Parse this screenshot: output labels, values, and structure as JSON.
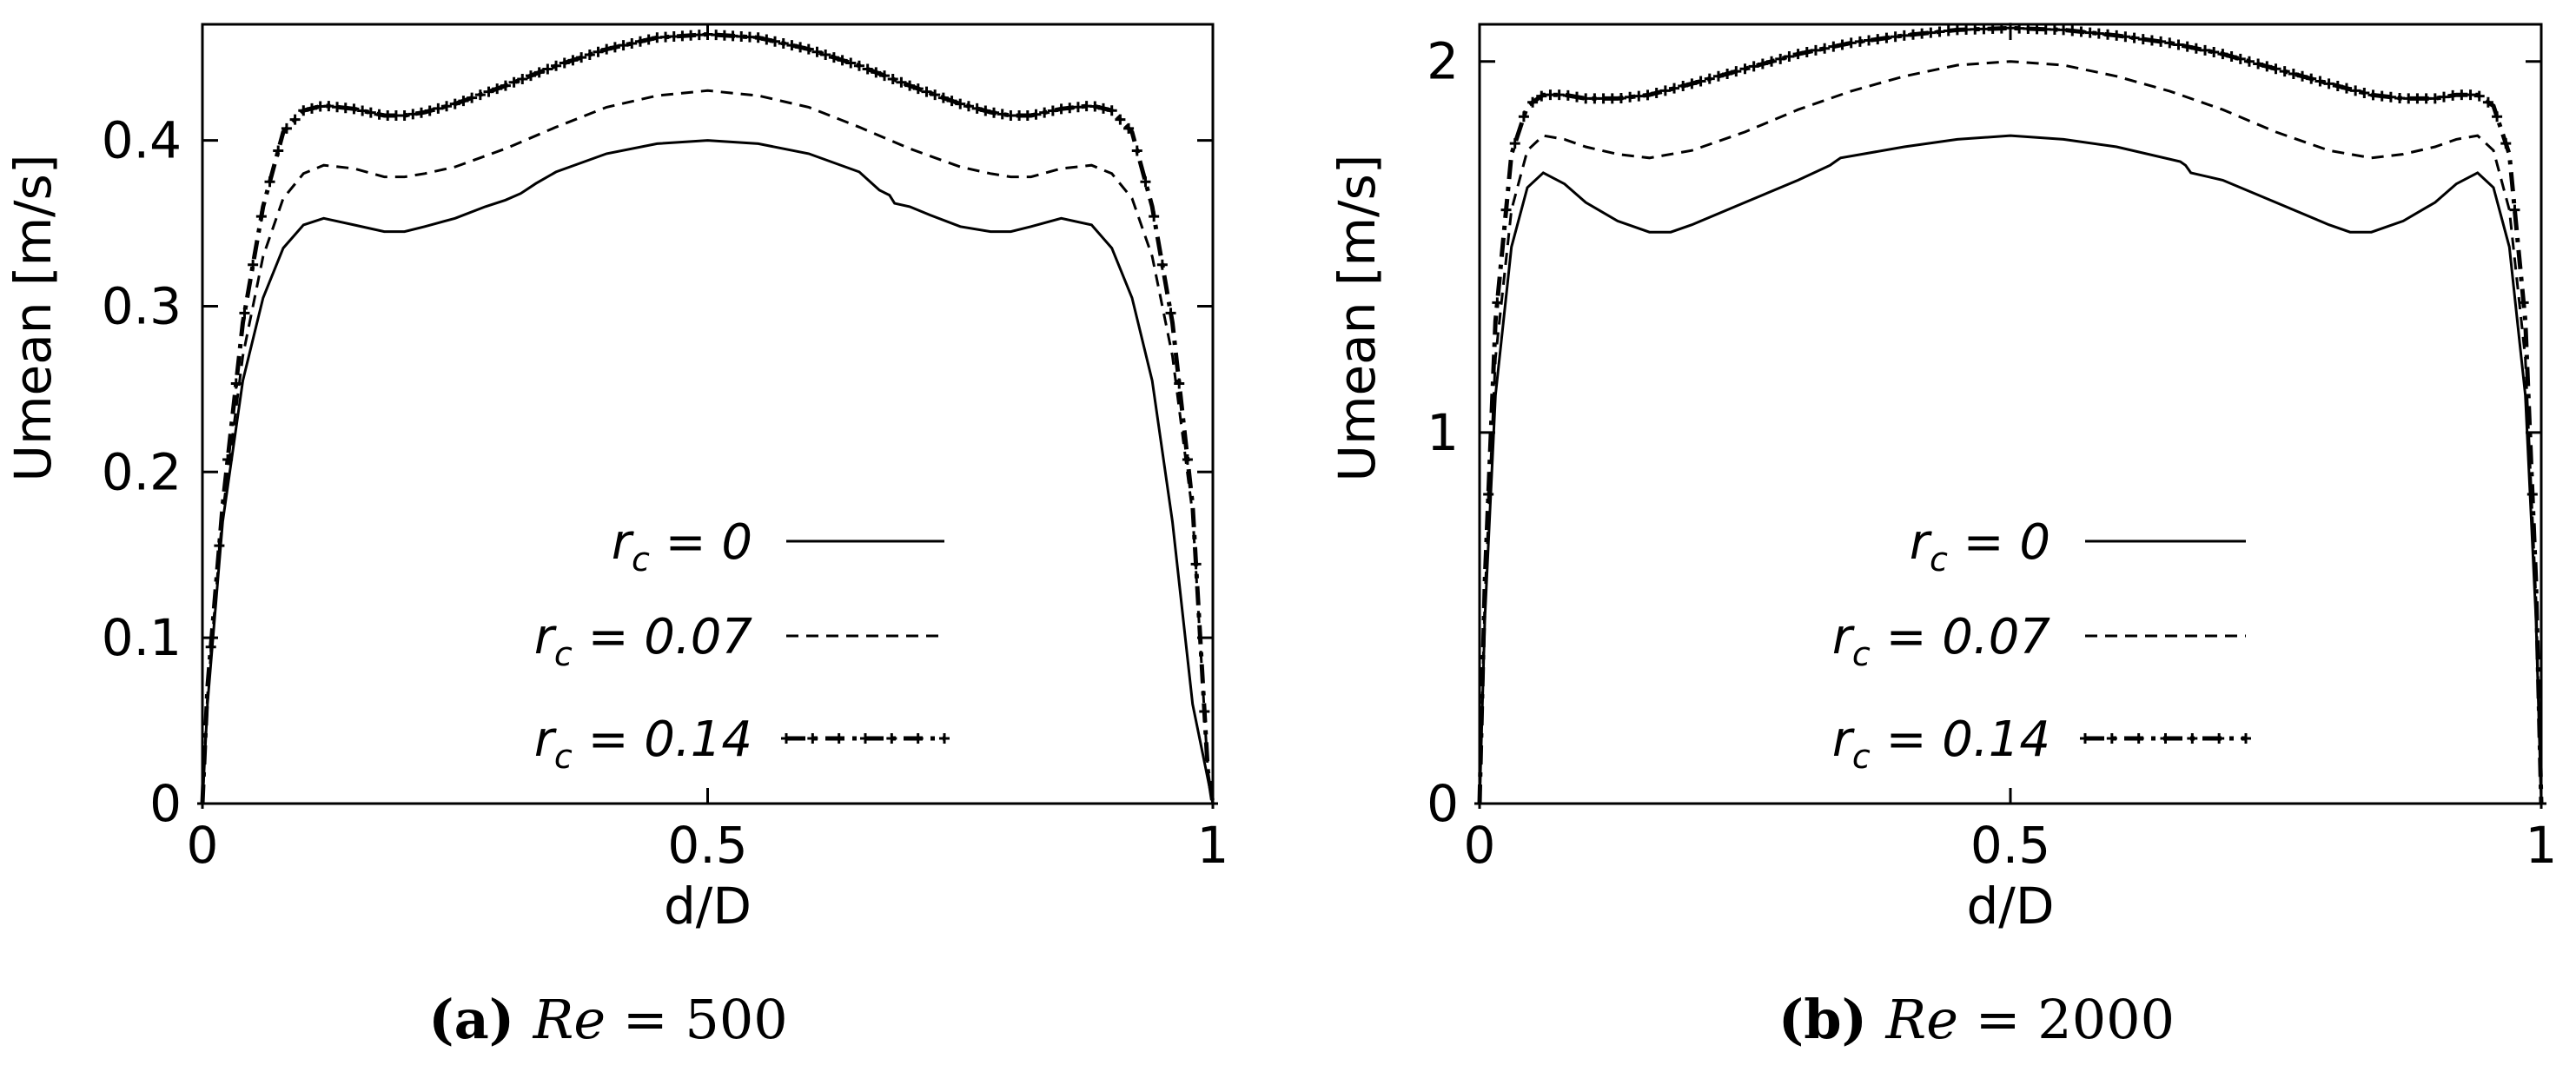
{
  "figure": {
    "chart_data": [
      {
        "type": "line",
        "panel": "a",
        "caption": {
          "tag": "(a)",
          "ital": "Re",
          "rest": " = 500"
        },
        "xlabel": "d/D",
        "ylabel": "Umean [m/s]",
        "xlim": [
          0,
          1
        ],
        "ylim": [
          0,
          0.47
        ],
        "xticks": [
          "0",
          "0.5",
          "1"
        ],
        "yticks": [
          "0",
          "0.1",
          "0.2",
          "0.3",
          "0.4"
        ],
        "legend_position": "bottom-center",
        "series": [
          {
            "name": "r_c = 0",
            "label_main": "r",
            "label_sub": "c",
            "label_rest": " = 0",
            "style": "solid",
            "x": [
              0,
              0.005,
              0.02,
              0.04,
              0.06,
              0.08,
              0.1,
              0.12,
              0.15,
              0.18,
              0.2,
              0.22,
              0.25,
              0.28,
              0.3,
              0.315,
              0.32,
              0.33,
              0.35,
              0.4,
              0.45,
              0.5,
              0.55,
              0.6,
              0.65,
              0.67,
              0.68,
              0.685,
              0.7,
              0.72,
              0.75,
              0.78,
              0.8,
              0.82,
              0.85,
              0.88,
              0.9,
              0.92,
              0.94,
              0.96,
              0.98,
              0.995,
              1
            ],
            "y": [
              0,
              0.06,
              0.17,
              0.255,
              0.305,
              0.335,
              0.349,
              0.353,
              0.349,
              0.345,
              0.345,
              0.348,
              0.353,
              0.36,
              0.364,
              0.368,
              0.37,
              0.374,
              0.381,
              0.392,
              0.398,
              0.4,
              0.398,
              0.392,
              0.381,
              0.37,
              0.367,
              0.362,
              0.36,
              0.355,
              0.348,
              0.345,
              0.345,
              0.348,
              0.353,
              0.349,
              0.335,
              0.305,
              0.255,
              0.17,
              0.06,
              0.015,
              0
            ]
          },
          {
            "name": "r_c = 0.07",
            "label_main": "r",
            "label_sub": "c",
            "label_rest": " = 0.07",
            "style": "dashed",
            "x": [
              0,
              0.005,
              0.02,
              0.04,
              0.06,
              0.08,
              0.1,
              0.12,
              0.15,
              0.18,
              0.2,
              0.22,
              0.25,
              0.3,
              0.35,
              0.4,
              0.45,
              0.5,
              0.55,
              0.6,
              0.65,
              0.7,
              0.75,
              0.78,
              0.8,
              0.82,
              0.85,
              0.88,
              0.9,
              0.92,
              0.94,
              0.96,
              0.98,
              0.995,
              1
            ],
            "y": [
              0,
              0.065,
              0.175,
              0.27,
              0.33,
              0.365,
              0.38,
              0.385,
              0.383,
              0.378,
              0.378,
              0.38,
              0.384,
              0.395,
              0.408,
              0.42,
              0.427,
              0.43,
              0.427,
              0.42,
              0.408,
              0.395,
              0.384,
              0.38,
              0.378,
              0.378,
              0.383,
              0.385,
              0.38,
              0.365,
              0.33,
              0.27,
              0.175,
              0.02,
              0
            ]
          },
          {
            "name": "r_c = 0.14",
            "label_main": "r",
            "label_sub": "c",
            "label_rest": " = 0.14",
            "style": "dash-dot-marker",
            "x": [
              0,
              0.005,
              0.02,
              0.04,
              0.06,
              0.08,
              0.1,
              0.12,
              0.15,
              0.18,
              0.2,
              0.22,
              0.25,
              0.3,
              0.35,
              0.4,
              0.45,
              0.5,
              0.55,
              0.6,
              0.65,
              0.7,
              0.75,
              0.78,
              0.8,
              0.82,
              0.85,
              0.88,
              0.9,
              0.92,
              0.94,
              0.96,
              0.98,
              0.995,
              1
            ],
            "y": [
              0,
              0.07,
              0.18,
              0.29,
              0.36,
              0.405,
              0.418,
              0.421,
              0.419,
              0.415,
              0.415,
              0.417,
              0.422,
              0.433,
              0.445,
              0.455,
              0.462,
              0.464,
              0.462,
              0.455,
              0.445,
              0.433,
              0.422,
              0.417,
              0.415,
              0.415,
              0.419,
              0.421,
              0.418,
              0.405,
              0.36,
              0.29,
              0.18,
              0.02,
              0
            ]
          }
        ]
      },
      {
        "type": "line",
        "panel": "b",
        "caption": {
          "tag": "(b)",
          "ital": "Re",
          "rest": " = 2000"
        },
        "xlabel": "d/D",
        "ylabel": "Umean [m/s]",
        "xlim": [
          0,
          1
        ],
        "ylim": [
          0,
          2.1
        ],
        "xticks": [
          "0",
          "0.5",
          "1"
        ],
        "yticks": [
          "0",
          "1",
          "2"
        ],
        "legend_position": "bottom-center",
        "series": [
          {
            "name": "r_c = 0",
            "label_main": "r",
            "label_sub": "c",
            "label_rest": " = 0",
            "style": "solid",
            "x": [
              0,
              0.005,
              0.015,
              0.03,
              0.045,
              0.06,
              0.08,
              0.1,
              0.13,
              0.16,
              0.18,
              0.2,
              0.25,
              0.3,
              0.33,
              0.335,
              0.34,
              0.4,
              0.45,
              0.5,
              0.55,
              0.6,
              0.66,
              0.665,
              0.67,
              0.7,
              0.75,
              0.8,
              0.82,
              0.84,
              0.87,
              0.9,
              0.92,
              0.94,
              0.955,
              0.97,
              0.985,
              0.995,
              1
            ],
            "y": [
              0,
              0.5,
              1.1,
              1.5,
              1.66,
              1.7,
              1.67,
              1.62,
              1.57,
              1.54,
              1.54,
              1.56,
              1.62,
              1.68,
              1.72,
              1.73,
              1.74,
              1.77,
              1.79,
              1.8,
              1.79,
              1.77,
              1.73,
              1.72,
              1.7,
              1.68,
              1.62,
              1.56,
              1.54,
              1.54,
              1.57,
              1.62,
              1.67,
              1.7,
              1.66,
              1.5,
              1.1,
              0.5,
              0
            ]
          },
          {
            "name": "r_c = 0.07",
            "label_main": "r",
            "label_sub": "c",
            "label_rest": " = 0.07",
            "style": "dashed",
            "x": [
              0,
              0.005,
              0.015,
              0.03,
              0.045,
              0.06,
              0.08,
              0.1,
              0.13,
              0.16,
              0.2,
              0.25,
              0.3,
              0.35,
              0.4,
              0.45,
              0.5,
              0.55,
              0.6,
              0.65,
              0.7,
              0.75,
              0.8,
              0.84,
              0.87,
              0.9,
              0.92,
              0.94,
              0.955,
              0.97,
              0.985,
              0.995,
              1
            ],
            "y": [
              0,
              0.55,
              1.2,
              1.6,
              1.76,
              1.8,
              1.79,
              1.77,
              1.75,
              1.74,
              1.76,
              1.81,
              1.87,
              1.92,
              1.96,
              1.99,
              2.0,
              1.99,
              1.96,
              1.92,
              1.87,
              1.81,
              1.76,
              1.74,
              1.75,
              1.77,
              1.79,
              1.8,
              1.76,
              1.6,
              1.2,
              0.55,
              0
            ]
          },
          {
            "name": "r_c = 0.14",
            "label_main": "r",
            "label_sub": "c",
            "label_rest": " = 0.14",
            "style": "dash-dot-marker",
            "x": [
              0,
              0.005,
              0.015,
              0.03,
              0.045,
              0.06,
              0.08,
              0.1,
              0.13,
              0.16,
              0.2,
              0.25,
              0.3,
              0.35,
              0.4,
              0.45,
              0.5,
              0.55,
              0.6,
              0.65,
              0.7,
              0.75,
              0.8,
              0.84,
              0.87,
              0.9,
              0.92,
              0.94,
              0.955,
              0.97,
              0.985,
              0.995,
              1
            ],
            "y": [
              0,
              0.6,
              1.3,
              1.75,
              1.88,
              1.91,
              1.91,
              1.9,
              1.9,
              1.91,
              1.94,
              1.98,
              2.02,
              2.05,
              2.07,
              2.085,
              2.09,
              2.085,
              2.07,
              2.05,
              2.02,
              1.98,
              1.94,
              1.91,
              1.9,
              1.9,
              1.91,
              1.91,
              1.88,
              1.75,
              1.3,
              0.6,
              0
            ]
          }
        ]
      }
    ]
  }
}
